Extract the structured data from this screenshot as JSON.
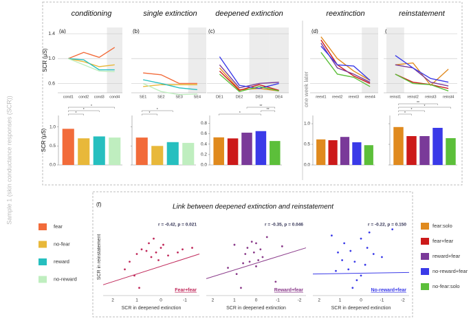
{
  "figure_label": "Sample 1 (skin conductance responses (SCR))",
  "week_note": "one week later",
  "section_f": {
    "label": "(f)",
    "title": "Link between deepened extinction and reinstatement"
  },
  "chart_data": [
    {
      "type": "line",
      "panel": "(a)",
      "title": "conditioning",
      "ylabel": "SCR (µS)",
      "tick_labels": true,
      "categories": [
        "cond1",
        "cond2",
        "cond3",
        "cond4"
      ],
      "highlight": [
        3
      ],
      "ylim": [
        0.45,
        1.5
      ],
      "yticks": [
        1.4,
        {
          "value": 1,
          "label": "1.0"
        },
        0.6
      ],
      "grid": true,
      "series": [
        {
          "name": "fear",
          "color": "#f26b3a",
          "values": [
            1.0,
            1.1,
            1.02,
            1.18
          ]
        },
        {
          "name": "no-fear",
          "color": "#e8b83a",
          "values": [
            1.0,
            0.95,
            0.87,
            0.9
          ]
        },
        {
          "name": "reward",
          "color": "#26bfbf",
          "values": [
            1.0,
            0.98,
            0.82,
            0.82
          ]
        },
        {
          "name": "no-reward",
          "color": "#bfeebf",
          "values": [
            1.0,
            0.9,
            0.8,
            0.79
          ]
        }
      ]
    },
    {
      "type": "line",
      "panel": "(b)",
      "title": "single extinction",
      "tick_labels": false,
      "categories": [
        "SE1",
        "SE2",
        "SE3",
        "SE4"
      ],
      "highlight": [
        3
      ],
      "ylim": [
        0.45,
        1.5
      ],
      "yticks": [
        1.4,
        1,
        0.6
      ],
      "grid": true,
      "series": [
        {
          "name": "fear",
          "color": "#f26b3a",
          "values": [
            0.77,
            0.74,
            0.6,
            0.6
          ]
        },
        {
          "name": "no-fear",
          "color": "#e8b83a",
          "values": [
            0.55,
            0.58,
            0.58,
            0.58
          ]
        },
        {
          "name": "reward",
          "color": "#26bfbf",
          "values": [
            0.66,
            0.6,
            0.53,
            0.5
          ]
        },
        {
          "name": "no-reward",
          "color": "#bfeebf",
          "values": [
            0.6,
            0.47,
            0.42,
            0.43
          ]
        }
      ]
    },
    {
      "type": "line",
      "panel": "(c)",
      "title": "deepened extinction",
      "tick_labels": false,
      "categories": [
        "DE1",
        "DE2",
        "DE3",
        "DE4"
      ],
      "highlight": [
        2,
        3
      ],
      "ylim": [
        0.45,
        1.5
      ],
      "yticks": [
        1.4,
        1,
        0.6
      ],
      "grid": true,
      "series": [
        {
          "name": "fear:solo",
          "color": "#e08a1e",
          "values": [
            0.85,
            0.5,
            0.52,
            0.48
          ]
        },
        {
          "name": "fear+fear",
          "color": "#cc1a1a",
          "values": [
            0.8,
            0.49,
            0.58,
            0.49
          ]
        },
        {
          "name": "reward+fear",
          "color": "#7a3a99",
          "values": [
            0.9,
            0.53,
            0.6,
            0.62
          ]
        },
        {
          "name": "no-reward+fear",
          "color": "#3a3ae8",
          "values": [
            1.03,
            0.57,
            0.52,
            0.6
          ]
        },
        {
          "name": "no-fear:solo",
          "color": "#5cbf3a",
          "values": [
            0.75,
            0.47,
            0.55,
            0.48
          ]
        }
      ]
    },
    {
      "type": "line",
      "panel": "(d)",
      "title": "reextinction",
      "tick_labels": false,
      "categories": [
        "reext1",
        "reext2",
        "reext3",
        "reext4"
      ],
      "highlight": [
        3
      ],
      "ylim": [
        0.45,
        1.5
      ],
      "yticks": [
        1.4,
        1,
        0.6
      ],
      "grid": true,
      "series": [
        {
          "name": "fear:solo",
          "color": "#e08a1e",
          "values": [
            1.35,
            1.0,
            0.8,
            0.65
          ]
        },
        {
          "name": "fear+fear",
          "color": "#cc1a1a",
          "values": [
            1.3,
            0.9,
            0.72,
            0.6
          ]
        },
        {
          "name": "reward+fear",
          "color": "#7a3a99",
          "values": [
            1.25,
            0.85,
            0.75,
            0.62
          ]
        },
        {
          "name": "no-reward+fear",
          "color": "#3a3ae8",
          "values": [
            1.2,
            0.9,
            0.88,
            0.65
          ]
        },
        {
          "name": "no-fear:solo",
          "color": "#5cbf3a",
          "values": [
            1.1,
            0.75,
            0.7,
            0.55
          ]
        }
      ]
    },
    {
      "type": "line",
      "panel": "(e)",
      "title": "reinstatement",
      "tick_labels": false,
      "categories": [
        "reinst1",
        "reinst2",
        "reinst3",
        "reinst4"
      ],
      "highlight": [
        0
      ],
      "ylim": [
        0.45,
        1.5
      ],
      "yticks": [
        1.4,
        1,
        0.6
      ],
      "grid": true,
      "series": [
        {
          "name": "fear:solo",
          "color": "#e08a1e",
          "values": [
            0.9,
            0.93,
            0.57,
            0.83
          ]
        },
        {
          "name": "fear+fear",
          "color": "#cc1a1a",
          "values": [
            0.75,
            0.62,
            0.58,
            0.52
          ]
        },
        {
          "name": "reward+fear",
          "color": "#7a3a99",
          "values": [
            0.9,
            0.85,
            0.62,
            0.56
          ]
        },
        {
          "name": "no-reward+fear",
          "color": "#3a3ae8",
          "values": [
            1.05,
            0.85,
            0.68,
            0.62
          ]
        },
        {
          "name": "no-fear:solo",
          "color": "#5cbf3a",
          "values": [
            0.75,
            0.6,
            0.58,
            0.48
          ]
        }
      ]
    },
    {
      "type": "bar",
      "ylabel": "SCR (µS)",
      "tick_labels": true,
      "values": [
        0.95,
        0.7,
        0.75,
        0.72
      ],
      "colors": [
        "#f26b3a",
        "#e8b83a",
        "#26bfbf",
        "#bfeebf"
      ],
      "ylim": [
        0,
        1.3
      ],
      "yticks": [
        {
          "value": 0,
          "label": "0.0"
        },
        0.5,
        {
          "value": 1,
          "label": "1.0"
        }
      ],
      "annotations": [
        {
          "text": "*",
          "between": [
            0,
            1
          ]
        },
        {
          "text": "*",
          "between": [
            0,
            2
          ]
        },
        {
          "text": "*",
          "between": [
            0,
            3
          ]
        }
      ]
    },
    {
      "type": "bar",
      "tick_labels": false,
      "values": [
        0.72,
        0.5,
        0.6,
        0.58
      ],
      "colors": [
        "#f26b3a",
        "#e8b83a",
        "#26bfbf",
        "#bfeebf"
      ],
      "ylim": [
        0,
        1.3
      ],
      "yticks": [
        0,
        0.5,
        1
      ],
      "annotations": [
        {
          "text": "*",
          "between": [
            0,
            1
          ]
        },
        {
          "text": "*",
          "between": [
            0,
            2
          ]
        }
      ]
    },
    {
      "type": "bar",
      "tick_labels": true,
      "values": [
        0.53,
        0.51,
        0.62,
        0.65,
        0.46
      ],
      "colors": [
        "#e08a1e",
        "#cc1a1a",
        "#7a3a99",
        "#3a3ae8",
        "#5cbf3a"
      ],
      "ylim": [
        0,
        0.95
      ],
      "yticks": [
        {
          "value": 0,
          "label": "0.0"
        },
        0.2,
        0.4,
        0.6,
        0.8
      ],
      "annotations": [
        {
          "text": "*",
          "between": [
            0,
            3
          ]
        },
        {
          "text": "**",
          "between": [
            3,
            4
          ]
        },
        {
          "text": "**",
          "between": [
            2,
            4
          ]
        }
      ]
    },
    {
      "type": "bar",
      "tick_labels": true,
      "values": [
        0.62,
        0.6,
        0.68,
        0.55,
        0.48
      ],
      "colors": [
        "#e08a1e",
        "#cc1a1a",
        "#7a3a99",
        "#3a3ae8",
        "#5cbf3a"
      ],
      "ylim": [
        0,
        1.2
      ],
      "yticks": [
        {
          "value": 0,
          "label": "0.0"
        },
        0.5,
        {
          "value": 1,
          "label": "1.0"
        }
      ],
      "annotations": []
    },
    {
      "type": "bar",
      "tick_labels": false,
      "values": [
        0.92,
        0.7,
        0.7,
        0.9,
        0.65
      ],
      "colors": [
        "#e08a1e",
        "#cc1a1a",
        "#7a3a99",
        "#3a3ae8",
        "#5cbf3a"
      ],
      "ylim": [
        0,
        1.2
      ],
      "yticks": [
        0,
        0.5,
        1
      ],
      "annotations": [
        {
          "text": "*",
          "between": [
            0,
            1
          ]
        },
        {
          "text": "*",
          "between": [
            0,
            2
          ]
        },
        {
          "text": "*",
          "between": [
            0,
            4
          ]
        },
        {
          "text": "**",
          "between": [
            0,
            3
          ]
        }
      ]
    },
    {
      "type": "scatter",
      "color": "#c0285a",
      "stat": "r = -0.42, p = 0.021",
      "corner_label": "Fear+fear",
      "xlabel": "SCR in deepened extinction",
      "ylabel": "SCR in reinstatement",
      "xlim": [
        2.4,
        -1.6
      ],
      "xticks": [
        2,
        1,
        0,
        -1
      ],
      "ylim": [
        -2.5,
        2.5
      ],
      "x": [
        1.5,
        1.3,
        1.1,
        1.0,
        0.8,
        0.6,
        0.5,
        0.3,
        0.2,
        0.0,
        -0.1,
        -0.3,
        0.1,
        -0.7,
        -0.9,
        -1.3,
        0.9,
        0.4
      ],
      "y": [
        -0.8,
        -0.3,
        -1.2,
        0.2,
        0.5,
        0.4,
        0.9,
        1.2,
        0.3,
        0.6,
        0.8,
        0.1,
        -0.2,
        0.3,
        0.5,
        0.6,
        -2.0,
        0.0
      ],
      "fit": {
        "x": [
          2.4,
          -1.6
        ],
        "y": [
          -1.8,
          0.2
        ]
      }
    },
    {
      "type": "scatter",
      "color": "#8a3a8a",
      "stat": "r = -0.35, p = 0.046",
      "corner_label": "Reward+fear",
      "xlabel": "SCR in deepened extinction",
      "xlim": [
        2.3,
        -2.3
      ],
      "xticks": [
        2,
        1,
        0,
        -1,
        -2
      ],
      "ylim": [
        -2.5,
        2.5
      ],
      "x": [
        1.3,
        0.9,
        0.5,
        0.3,
        0.1,
        0.0,
        -0.2,
        -0.1,
        0.4,
        -0.5,
        -0.3,
        0.6,
        -0.9,
        0.2,
        1.0,
        -1.2,
        0.7,
        0.0
      ],
      "y": [
        -0.7,
        -1.1,
        0.2,
        -0.3,
        0.3,
        0.9,
        0.5,
        -0.2,
        0.6,
        1.3,
        0.0,
        -0.4,
        -1.6,
        1.0,
        0.8,
        0.7,
        -2.0,
        -0.6
      ],
      "fit": {
        "x": [
          2.3,
          -2.3
        ],
        "y": [
          -1.4,
          0.6
        ]
      }
    },
    {
      "type": "scatter",
      "color": "#3a3ae8",
      "stat": "r = -0.22, p = 0.150",
      "corner_label": "No-reward+fear",
      "xlabel": "SCR in deepened extinction",
      "xlim": [
        2.3,
        -2.3
      ],
      "xticks": [
        2,
        1,
        0,
        -1,
        -2
      ],
      "ylim": [
        -2.5,
        2.5
      ],
      "x": [
        1.4,
        1.1,
        0.8,
        0.5,
        0.3,
        0.0,
        -0.3,
        -0.2,
        0.6,
        1.2,
        -0.6,
        0.2,
        0.0,
        -0.4,
        0.9,
        -1.0,
        -1.5,
        0.4
      ],
      "y": [
        1.4,
        0.3,
        0.9,
        0.4,
        -0.3,
        1.2,
        0.6,
        -0.5,
        -0.8,
        -0.9,
        0.2,
        -1.5,
        -1.2,
        1.6,
        -0.2,
        0.0,
        1.8,
        -2.0
      ],
      "fit": {
        "x": [
          2.3,
          -2.3
        ],
        "y": [
          -1.1,
          -1.0
        ]
      }
    }
  ]
}
